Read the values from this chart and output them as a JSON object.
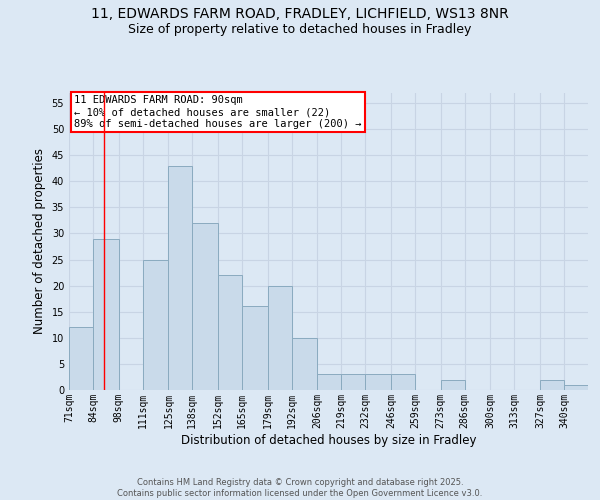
{
  "title_line1": "11, EDWARDS FARM ROAD, FRADLEY, LICHFIELD, WS13 8NR",
  "title_line2": "Size of property relative to detached houses in Fradley",
  "xlabel": "Distribution of detached houses by size in Fradley",
  "ylabel": "Number of detached properties",
  "bin_labels": [
    "71sqm",
    "84sqm",
    "98sqm",
    "111sqm",
    "125sqm",
    "138sqm",
    "152sqm",
    "165sqm",
    "179sqm",
    "192sqm",
    "206sqm",
    "219sqm",
    "232sqm",
    "246sqm",
    "259sqm",
    "273sqm",
    "286sqm",
    "300sqm",
    "313sqm",
    "327sqm",
    "340sqm"
  ],
  "bin_edges": [
    71,
    84,
    98,
    111,
    125,
    138,
    152,
    165,
    179,
    192,
    206,
    219,
    232,
    246,
    259,
    273,
    286,
    300,
    313,
    327,
    340,
    353
  ],
  "heights": [
    12,
    29,
    0,
    25,
    43,
    32,
    22,
    16,
    20,
    10,
    3,
    3,
    3,
    3,
    0,
    2,
    0,
    0,
    0,
    2,
    1
  ],
  "bar_facecolor": "#c9daea",
  "bar_edgecolor": "#8aaabf",
  "bar_linewidth": 0.7,
  "grid_color": "#c8d4e4",
  "axes_bg_color": "#dce8f4",
  "fig_bg_color": "#dce8f4",
  "redline_x": 90,
  "ylim": [
    0,
    57
  ],
  "yticks": [
    0,
    5,
    10,
    15,
    20,
    25,
    30,
    35,
    40,
    45,
    50,
    55
  ],
  "annotation_text": "11 EDWARDS FARM ROAD: 90sqm\n← 10% of detached houses are smaller (22)\n89% of semi-detached houses are larger (200) →",
  "footer_text": "Contains HM Land Registry data © Crown copyright and database right 2025.\nContains public sector information licensed under the Open Government Licence v3.0.",
  "title_fontsize": 10,
  "subtitle_fontsize": 9,
  "tick_fontsize": 7,
  "label_fontsize": 8.5,
  "annotation_fontsize": 7.5,
  "footer_fontsize": 6
}
